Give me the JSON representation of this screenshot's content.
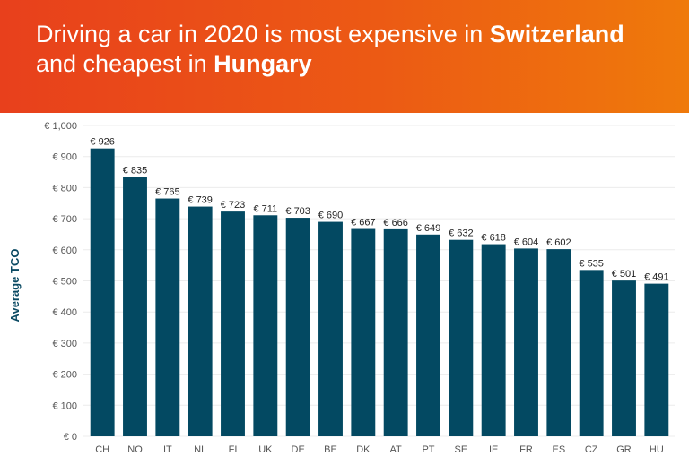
{
  "header": {
    "title_line1_pre": "Driving a car in 2020 is most expensive in ",
    "title_line1_bold": "Switzerland",
    "title_line2_pre": "and cheapest in ",
    "title_line2_bold": "Hungary"
  },
  "colors": {
    "banner_start": "#e8401c",
    "banner_end": "#ef7a0b",
    "bar": "#034962",
    "ylabel": "#0b4a63",
    "tick_text": "#555555",
    "label_text": "#222222"
  },
  "chart_data": {
    "type": "bar",
    "ylabel": "Average TCO",
    "ylim": [
      0,
      1000
    ],
    "yticks": [
      0,
      100,
      200,
      300,
      400,
      500,
      600,
      700,
      800,
      900,
      1000
    ],
    "ytick_labels": [
      "€ 0",
      "€ 100",
      "€ 200",
      "€ 300",
      "€ 400",
      "€ 500",
      "€ 600",
      "€ 700",
      "€ 800",
      "€ 900",
      "€ 1,000"
    ],
    "categories": [
      "CH",
      "NO",
      "IT",
      "NL",
      "FI",
      "UK",
      "DE",
      "BE",
      "DK",
      "AT",
      "PT",
      "SE",
      "IE",
      "FR",
      "ES",
      "CZ",
      "GR",
      "HU"
    ],
    "values": [
      926,
      835,
      765,
      739,
      723,
      711,
      703,
      690,
      667,
      666,
      649,
      632,
      618,
      604,
      602,
      535,
      501,
      491
    ],
    "value_labels": [
      "€ 926",
      "€ 835",
      "€ 765",
      "€ 739",
      "€ 723",
      "€ 711",
      "€ 703",
      "€ 690",
      "€ 667",
      "€ 666",
      "€ 649",
      "€ 632",
      "€ 618",
      "€ 604",
      "€ 602",
      "€ 535",
      "€ 501",
      "€ 491"
    ],
    "grid": true
  }
}
